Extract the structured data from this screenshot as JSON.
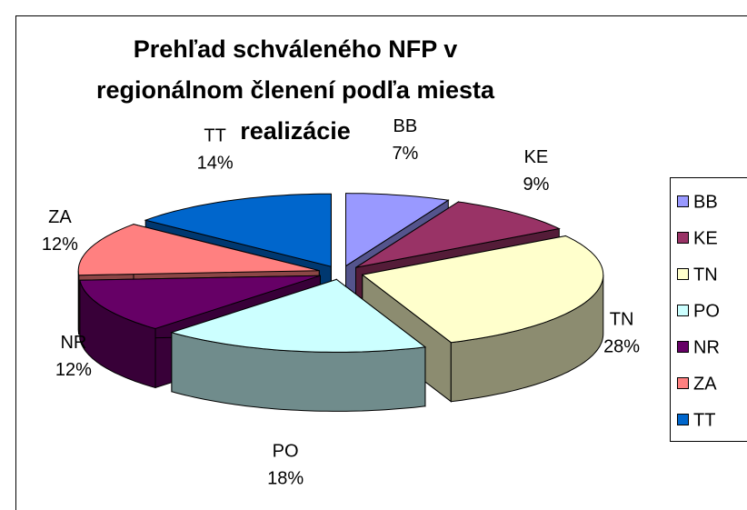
{
  "chart_data": {
    "type": "pie",
    "title": "Prehľad schváleného NFP v regionálnom členení podľa miesta realizácie",
    "categories": [
      "BB",
      "KE",
      "TN",
      "PO",
      "NR",
      "ZA",
      "TT"
    ],
    "values": [
      7,
      9,
      28,
      18,
      12,
      12,
      14
    ],
    "value_labels": [
      "7%",
      "9%",
      "28%",
      "18%",
      "12%",
      "12%",
      "14%"
    ],
    "colors": [
      "#9999ff",
      "#993366",
      "#ffffcc",
      "#ccffff",
      "#660066",
      "#ff8080",
      "#0066cc"
    ],
    "legend": "right"
  }
}
